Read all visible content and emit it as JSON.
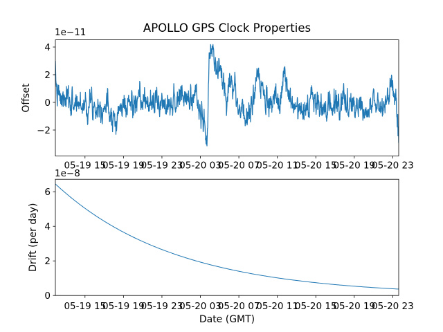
{
  "figure": {
    "title": "APOLLO GPS Clock Properties",
    "background_color": "#ffffff",
    "line_color": "#1f77b4",
    "axis_color": "#000000"
  },
  "chart_data": [
    {
      "type": "line",
      "name": "offset-subplot",
      "title": "APOLLO GPS Clock Properties",
      "ylabel": "Offset",
      "xlabel": "",
      "scale_label": "1e−11",
      "units": "1e-11 (dimensionless offset)",
      "grid": false,
      "legend": "none",
      "x_range_hours": [
        0,
        35.7
      ],
      "x_ticks": {
        "first_hour": 3.08,
        "step_hours": 4,
        "labels": [
          "05-19 15",
          "05-19 19",
          "05-19 23",
          "05-20 03",
          "05-20 07",
          "05-20 11",
          "05-20 15",
          "05-20 19",
          "05-20 23"
        ]
      },
      "ylim": [
        -3.88,
        4.52
      ],
      "y_ticks": {
        "values": [
          -2,
          0,
          2,
          4
        ],
        "labels": [
          "−2",
          "0",
          "2",
          "4"
        ]
      },
      "series": {
        "kind": "noisy_envelope",
        "name": "offset-series",
        "description": "Noisy clock offset around 0 with large negative glitch to -3.6e-11 followed by jump to +4.15e-11 near 05-20 03:40",
        "n_points": 1430,
        "noise": {
          "phi": 0.62,
          "sigma": 0.4,
          "seed": 7,
          "clip": [
            -3.65,
            4.18
          ]
        },
        "envelope_points": [
          [
            0,
            1.9
          ],
          [
            0.15,
            0.8
          ],
          [
            0.4,
            0.2
          ],
          [
            1.2,
            0.05
          ],
          [
            2.2,
            -0.05
          ],
          [
            3.2,
            -0.1
          ],
          [
            4.2,
            -0.15
          ],
          [
            5.4,
            -0.25
          ],
          [
            6.1,
            -0.9
          ],
          [
            6.4,
            -1.1
          ],
          [
            6.7,
            -0.5
          ],
          [
            7.6,
            -0.1
          ],
          [
            8.6,
            -0.1
          ],
          [
            9.6,
            0
          ],
          [
            10.6,
            -0.05
          ],
          [
            11.6,
            0.1
          ],
          [
            12.6,
            0.15
          ],
          [
            13.3,
            0.35
          ],
          [
            13.9,
            0.15
          ],
          [
            14.35,
            0.65
          ],
          [
            14.75,
            0.2
          ],
          [
            15.05,
            -0.6
          ],
          [
            15.35,
            -1.25
          ],
          [
            15.55,
            -1.8
          ],
          [
            15.66,
            -3.55
          ],
          [
            15.78,
            -2.6
          ],
          [
            15.9,
            0.6
          ],
          [
            16.0,
            3.3
          ],
          [
            16.2,
            3.85
          ],
          [
            16.4,
            3.45
          ],
          [
            16.65,
            2.85
          ],
          [
            16.95,
            2.25
          ],
          [
            17.35,
            1.35
          ],
          [
            17.75,
            1.05
          ],
          [
            18.1,
            1.45
          ],
          [
            18.35,
            1.85
          ],
          [
            18.75,
            0.65
          ],
          [
            19.15,
            -0.35
          ],
          [
            19.55,
            -1.15
          ],
          [
            19.95,
            -0.95
          ],
          [
            20.35,
            -0.25
          ],
          [
            20.85,
            1.1
          ],
          [
            21.15,
            1.4
          ],
          [
            21.55,
            0.55
          ],
          [
            22.05,
            -0.05
          ],
          [
            22.55,
            -0.25
          ],
          [
            23.3,
            0.05
          ],
          [
            23.6,
            1.2
          ],
          [
            23.78,
            2.45
          ],
          [
            23.98,
            1.2
          ],
          [
            24.35,
            0.25
          ],
          [
            24.85,
            -0.25
          ],
          [
            25.6,
            -0.05
          ],
          [
            26.4,
            -0.15
          ],
          [
            27.1,
            0.05
          ],
          [
            27.65,
            -0.95
          ],
          [
            27.95,
            -0.35
          ],
          [
            28.6,
            0.05
          ],
          [
            29.3,
            -0.1
          ],
          [
            30.1,
            0.15
          ],
          [
            30.9,
            -0.25
          ],
          [
            31.6,
            0.05
          ],
          [
            32.3,
            -0.85
          ],
          [
            32.7,
            -0.35
          ],
          [
            33.3,
            0.05
          ],
          [
            33.9,
            -0.3
          ],
          [
            34.5,
            0.35
          ],
          [
            34.95,
            1.65
          ],
          [
            35.15,
            0.8
          ],
          [
            35.4,
            0.1
          ],
          [
            35.55,
            -1.1
          ],
          [
            35.7,
            -1.6
          ]
        ]
      }
    },
    {
      "type": "line",
      "name": "drift-subplot",
      "title": "",
      "ylabel": "Drift (per day)",
      "xlabel": "Date (GMT)",
      "scale_label": "1e−8",
      "units": "1e-8 per day",
      "grid": false,
      "legend": "none",
      "x_range_hours": [
        0,
        35.7
      ],
      "x_ticks": {
        "first_hour": 3.08,
        "step_hours": 4,
        "labels": [
          "05-19 15",
          "05-19 19",
          "05-19 23",
          "05-20 03",
          "05-20 07",
          "05-20 11",
          "05-20 15",
          "05-20 19",
          "05-20 23"
        ]
      },
      "ylim": [
        0,
        6.72
      ],
      "y_ticks": {
        "values": [
          0,
          2,
          4,
          6
        ],
        "labels": [
          "0",
          "2",
          "4",
          "6"
        ]
      },
      "series": {
        "kind": "exp_decay",
        "name": "drift-series",
        "description": "Smooth exponential decay of clock drift from 6.45e-8 to 0.37e-8 per day",
        "n_points": 240,
        "start_value": 6.45,
        "tau_hours": 12.5,
        "end_value": 0.37
      }
    }
  ]
}
